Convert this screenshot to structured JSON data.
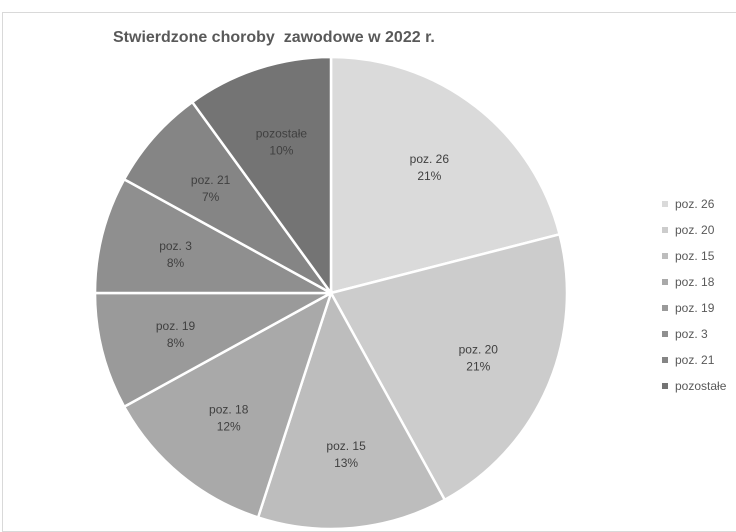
{
  "chart_data": {
    "type": "pie",
    "title": "Stwierdzone choroby  zawodowe w 2022 r.",
    "slices": [
      {
        "label": "poz. 26",
        "percent_label": "21%",
        "value": 21,
        "color": "#dadada"
      },
      {
        "label": "poz. 20",
        "percent_label": "21%",
        "value": 21,
        "color": "#cccccc"
      },
      {
        "label": "poz. 15",
        "percent_label": "13%",
        "value": 13,
        "color": "#bdbdbd"
      },
      {
        "label": "poz. 18",
        "percent_label": "12%",
        "value": 12,
        "color": "#a9a9a9"
      },
      {
        "label": "poz. 19",
        "percent_label": "8%",
        "value": 8,
        "color": "#9a9a9a"
      },
      {
        "label": "poz. 3",
        "percent_label": "8%",
        "value": 8,
        "color": "#8f8f8f"
      },
      {
        "label": "poz. 21",
        "percent_label": "7%",
        "value": 7,
        "color": "#858585"
      },
      {
        "label": "pozostałe",
        "percent_label": "10%",
        "value": 10,
        "color": "#747474"
      }
    ],
    "legend_position": "right",
    "legend": [
      "poz. 26",
      "poz. 20",
      "poz. 15",
      "poz. 18",
      "poz. 19",
      "poz. 3",
      "poz. 21",
      "pozostałe"
    ]
  }
}
